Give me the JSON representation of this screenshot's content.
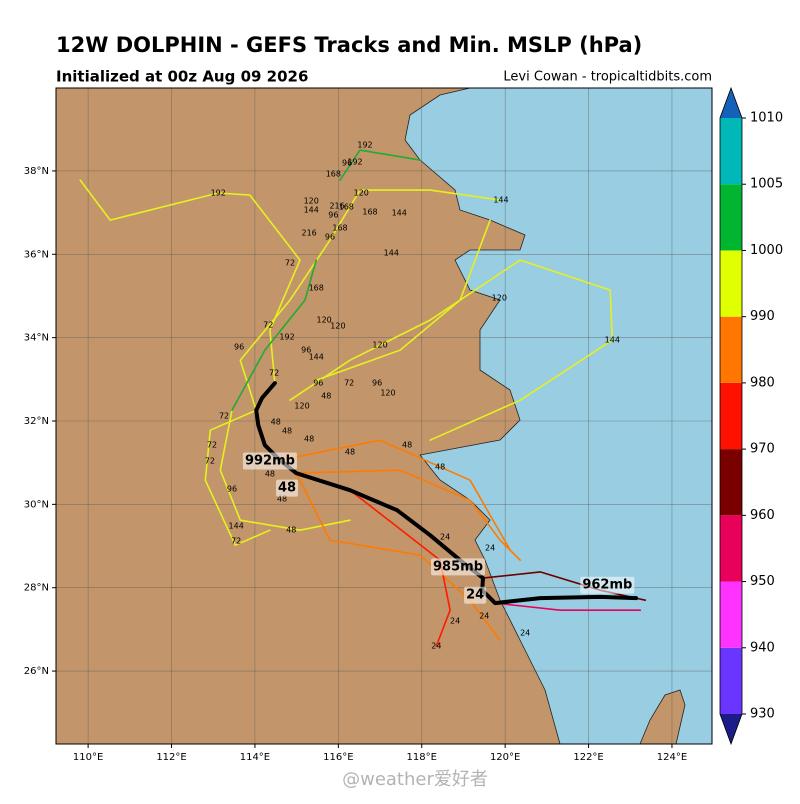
{
  "title": "12W DOLPHIN - GEFS Tracks and Min. MSLP (hPa)",
  "subtitle": "Initialized at 00z Aug 09 2026",
  "credit": "Levi Cowan - tropicaltidbits.com",
  "watermark": "@weather爱好者",
  "map": {
    "xlim": [
      109.23,
      124.96
    ],
    "ylim": [
      24.25,
      39.99
    ],
    "xticks": [
      {
        "value": 110,
        "label": "110°E"
      },
      {
        "value": 112,
        "label": "112°E"
      },
      {
        "value": 114,
        "label": "114°E"
      },
      {
        "value": 116,
        "label": "116°E"
      },
      {
        "value": 118,
        "label": "118°E"
      },
      {
        "value": 120,
        "label": "120°E"
      },
      {
        "value": 122,
        "label": "122°E"
      },
      {
        "value": 124,
        "label": "124°E"
      }
    ],
    "yticks": [
      {
        "value": 26,
        "label": "26°N"
      },
      {
        "value": 28,
        "label": "28°N"
      },
      {
        "value": 30,
        "label": "30°N"
      },
      {
        "value": 32,
        "label": "32°N"
      },
      {
        "value": 34,
        "label": "34°N"
      },
      {
        "value": 36,
        "label": "36°N"
      },
      {
        "value": 38,
        "label": "38°N"
      }
    ],
    "grid": true
  },
  "colorbar": {
    "ticks": [
      930,
      940,
      950,
      960,
      970,
      980,
      990,
      1000,
      1005,
      1010
    ],
    "colors": [
      "#6a35ff",
      "#ff33ff",
      "#e8005a",
      "#7a0000",
      "#ff1100",
      "#ff7700",
      "#e0ff00",
      "#00b52f",
      "#00b8b8"
    ],
    "under_color": "#1b1b8a",
    "over_color": "#1560b8"
  },
  "tracks": [
    {
      "color": "#e6f020",
      "lon": [
        114.03,
        113.65,
        114.84,
        115.8,
        116.52,
        118.2,
        119.88
      ],
      "lat": [
        32.26,
        33.46,
        34.9,
        36.34,
        37.54,
        37.54,
        37.3
      ]
    },
    {
      "color": "#e6f020",
      "lon": [
        114.48,
        114.36,
        115.08,
        113.88,
        113.12,
        110.53,
        109.81
      ],
      "lat": [
        32.91,
        34.18,
        35.86,
        37.42,
        37.47,
        36.82,
        37.78
      ]
    },
    {
      "color": "#e6f020",
      "lon": [
        114.84,
        116.28,
        118.2,
        120.36,
        122.52,
        122.57,
        120.36,
        118.2
      ],
      "lat": [
        32.5,
        33.46,
        34.42,
        35.86,
        35.14,
        33.94,
        32.5,
        31.54
      ]
    },
    {
      "color": "#e6f020",
      "lon": [
        114.03,
        112.93,
        112.81,
        113.53,
        114.36
      ],
      "lat": [
        32.26,
        31.78,
        30.58,
        29.02,
        29.38
      ]
    },
    {
      "color": "#e6f020",
      "lon": [
        113.45,
        113.17,
        113.65,
        115.08,
        116.28
      ],
      "lat": [
        32.26,
        30.82,
        29.62,
        29.38,
        29.62
      ]
    },
    {
      "color": "#e6f020",
      "lon": [
        115.47,
        117.48,
        118.92,
        119.64
      ],
      "lat": [
        32.98,
        33.7,
        34.9,
        36.82
      ]
    },
    {
      "color": "#22aa33",
      "lon": [
        115.47,
        115.2,
        114.24,
        113.45
      ],
      "lat": [
        35.86,
        34.9,
        33.7,
        32.26
      ]
    },
    {
      "color": "#22aa33",
      "lon": [
        116.04,
        116.52,
        117.96
      ],
      "lat": [
        37.78,
        38.5,
        38.26
      ]
    },
    {
      "color": "#ff7a00",
      "lon": [
        114.99,
        117.48,
        119.16,
        119.88,
        120.36
      ],
      "lat": [
        30.75,
        30.82,
        30.1,
        29.14,
        28.66
      ]
    },
    {
      "color": "#ff7a00",
      "lon": [
        114.99,
        115.8,
        117.96,
        119.16,
        119.88
      ],
      "lat": [
        30.75,
        29.14,
        28.78,
        27.7,
        26.74
      ]
    },
    {
      "color": "#ff7a00",
      "lon": [
        114.6,
        117.0,
        119.16,
        120.12
      ],
      "lat": [
        31.06,
        31.54,
        30.58,
        28.9
      ]
    },
    {
      "color": "#ff1a00",
      "lon": [
        116.28,
        118.44,
        118.68,
        118.35
      ],
      "lat": [
        30.34,
        28.66,
        27.46,
        26.6
      ]
    },
    {
      "color": "#6e0000",
      "lon": [
        119.47,
        120.84,
        122.28,
        123.36
      ],
      "lat": [
        28.23,
        28.38,
        27.94,
        27.7
      ]
    },
    {
      "color": "#e8005a",
      "lon": [
        119.76,
        121.32,
        123.24
      ],
      "lat": [
        27.63,
        27.46,
        27.46
      ]
    }
  ],
  "mean_track": {
    "color": "#000000",
    "lon": [
      114.48,
      114.17,
      114.03,
      114.08,
      114.24,
      114.6,
      114.99,
      116.28,
      117.41,
      118.2,
      118.92,
      119.47,
      119.45,
      119.76,
      120.84,
      122.28,
      123.14
    ],
    "lat": [
      32.91,
      32.55,
      32.26,
      31.9,
      31.42,
      31.06,
      30.75,
      30.34,
      29.86,
      29.26,
      28.66,
      28.23,
      27.94,
      27.63,
      27.75,
      27.78,
      27.75
    ]
  },
  "annotations": [
    {
      "text": "992mb",
      "lon": 114.36,
      "lat": 31.04
    },
    {
      "text": "48",
      "lon": 114.77,
      "lat": 30.39
    },
    {
      "text": "985mb",
      "lon": 118.87,
      "lat": 28.5
    },
    {
      "text": "24",
      "lon": 119.28,
      "lat": 27.82
    },
    {
      "text": "962mb",
      "lon": 122.45,
      "lat": 28.06
    }
  ],
  "track_labels": [
    {
      "text": "192",
      "lon": 116.64,
      "lat": 38.62
    },
    {
      "text": "192",
      "lon": 116.4,
      "lat": 38.22
    },
    {
      "text": "96",
      "lon": 116.21,
      "lat": 38.19
    },
    {
      "text": "168",
      "lon": 115.88,
      "lat": 37.93
    },
    {
      "text": "192",
      "lon": 113.12,
      "lat": 37.47
    },
    {
      "text": "120",
      "lon": 116.55,
      "lat": 37.47
    },
    {
      "text": "120",
      "lon": 115.35,
      "lat": 37.28
    },
    {
      "text": "144",
      "lon": 115.35,
      "lat": 37.06
    },
    {
      "text": "216",
      "lon": 115.97,
      "lat": 37.16
    },
    {
      "text": "168",
      "lon": 116.19,
      "lat": 37.14
    },
    {
      "text": "96",
      "lon": 115.88,
      "lat": 36.94
    },
    {
      "text": "168",
      "lon": 116.76,
      "lat": 37.02
    },
    {
      "text": "144",
      "lon": 117.46,
      "lat": 36.99
    },
    {
      "text": "144",
      "lon": 119.9,
      "lat": 37.3
    },
    {
      "text": "168",
      "lon": 116.04,
      "lat": 36.63
    },
    {
      "text": "216",
      "lon": 115.3,
      "lat": 36.51
    },
    {
      "text": "96",
      "lon": 115.8,
      "lat": 36.42
    },
    {
      "text": "144",
      "lon": 117.27,
      "lat": 36.03
    },
    {
      "text": "72",
      "lon": 114.84,
      "lat": 35.79
    },
    {
      "text": "168",
      "lon": 115.47,
      "lat": 35.19
    },
    {
      "text": "120",
      "lon": 119.86,
      "lat": 34.95
    },
    {
      "text": "120",
      "lon": 115.66,
      "lat": 34.42
    },
    {
      "text": "120",
      "lon": 115.99,
      "lat": 34.28
    },
    {
      "text": "144",
      "lon": 122.57,
      "lat": 33.94
    },
    {
      "text": "72",
      "lon": 114.32,
      "lat": 34.3
    },
    {
      "text": "96",
      "lon": 113.62,
      "lat": 33.78
    },
    {
      "text": "192",
      "lon": 114.77,
      "lat": 34.02
    },
    {
      "text": "120",
      "lon": 117.0,
      "lat": 33.82
    },
    {
      "text": "96",
      "lon": 115.23,
      "lat": 33.7
    },
    {
      "text": "144",
      "lon": 115.47,
      "lat": 33.54
    },
    {
      "text": "72",
      "lon": 114.46,
      "lat": 33.15
    },
    {
      "text": "96",
      "lon": 115.52,
      "lat": 32.91
    },
    {
      "text": "72",
      "lon": 116.26,
      "lat": 32.91
    },
    {
      "text": "96",
      "lon": 116.93,
      "lat": 32.91
    },
    {
      "text": "120",
      "lon": 117.19,
      "lat": 32.67
    },
    {
      "text": "48",
      "lon": 115.71,
      "lat": 32.6
    },
    {
      "text": "120",
      "lon": 115.13,
      "lat": 32.36
    },
    {
      "text": "72",
      "lon": 113.26,
      "lat": 32.12
    },
    {
      "text": "48",
      "lon": 114.77,
      "lat": 31.76
    },
    {
      "text": "48",
      "lon": 114.5,
      "lat": 31.98
    },
    {
      "text": "48",
      "lon": 117.65,
      "lat": 31.42
    },
    {
      "text": "48",
      "lon": 115.3,
      "lat": 31.57
    },
    {
      "text": "48",
      "lon": 116.28,
      "lat": 31.26
    },
    {
      "text": "72",
      "lon": 112.97,
      "lat": 31.42
    },
    {
      "text": "72",
      "lon": 112.92,
      "lat": 31.04
    },
    {
      "text": "48",
      "lon": 118.44,
      "lat": 30.9
    },
    {
      "text": "48",
      "lon": 114.36,
      "lat": 30.73
    },
    {
      "text": "96",
      "lon": 113.45,
      "lat": 30.37
    },
    {
      "text": "48",
      "lon": 114.65,
      "lat": 30.13
    },
    {
      "text": "48",
      "lon": 114.87,
      "lat": 29.38
    },
    {
      "text": "144",
      "lon": 113.55,
      "lat": 29.48
    },
    {
      "text": "72",
      "lon": 113.55,
      "lat": 29.12
    },
    {
      "text": "24",
      "lon": 118.56,
      "lat": 29.22
    },
    {
      "text": "24",
      "lon": 119.64,
      "lat": 28.95
    },
    {
      "text": "24",
      "lon": 119.5,
      "lat": 27.32
    },
    {
      "text": "24",
      "lon": 118.8,
      "lat": 27.2
    },
    {
      "text": "24",
      "lon": 118.35,
      "lat": 26.6
    },
    {
      "text": "24",
      "lon": 120.48,
      "lat": 26.91
    }
  ]
}
